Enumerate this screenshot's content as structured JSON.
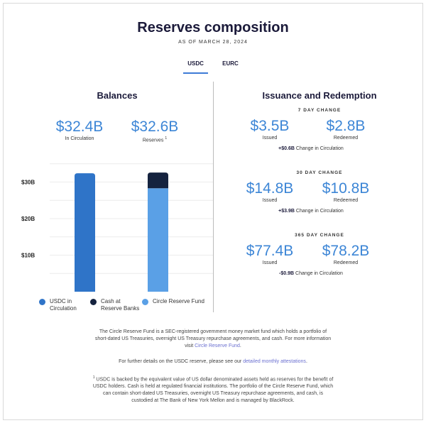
{
  "header": {
    "title": "Reserves composition",
    "as_of": "AS OF MARCH 28, 2024"
  },
  "tabs": [
    {
      "label": "USDC",
      "active": true
    },
    {
      "label": "EURC",
      "active": false
    }
  ],
  "balances": {
    "title": "Balances",
    "circulation": {
      "value": "$32.4B",
      "label": "In Circulation"
    },
    "reserves": {
      "value": "$32.6B",
      "label": "Reserves",
      "footnote": "1"
    }
  },
  "issuance": {
    "title": "Issuance and Redemption",
    "periods": [
      {
        "label": "7 DAY CHANGE",
        "issued": "$3.5B",
        "redeemed": "$2.8B",
        "issued_label": "Issued",
        "redeemed_label": "Redeemed",
        "net": "+$0.6B",
        "net_label": "Change in Circulation"
      },
      {
        "label": "30 DAY CHANGE",
        "issued": "$14.8B",
        "redeemed": "$10.8B",
        "issued_label": "Issued",
        "redeemed_label": "Redeemed",
        "net": "+$3.9B",
        "net_label": "Change in Circulation"
      },
      {
        "label": "365 DAY CHANGE",
        "issued": "$77.4B",
        "redeemed": "$78.2B",
        "issued_label": "Issued",
        "redeemed_label": "Redeemed",
        "net": "-$0.9B",
        "net_label": "Change in Circulation"
      }
    ]
  },
  "chart_data": {
    "type": "bar",
    "stacked": true,
    "categories": [
      "In Circulation",
      "Reserves"
    ],
    "series": [
      {
        "name": "USDC in Circulation",
        "values": [
          32.4,
          0
        ],
        "color": "#2f74c8"
      },
      {
        "name": "Cash at Reserve Banks",
        "values": [
          0,
          4.3
        ],
        "color": "#15233f"
      },
      {
        "name": "Circle Reserve Fund",
        "values": [
          0,
          28.3
        ],
        "color": "#5aa0e6"
      }
    ],
    "yticks": [
      "$10B",
      "$20B",
      "$30B"
    ],
    "ytick_values": [
      10,
      20,
      30
    ],
    "ylim": [
      0,
      35
    ],
    "grid": true,
    "legend": "bottom"
  },
  "footer": {
    "p1": "The Circle Reserve Fund is a SEC-registered government money market fund which holds a portfolio of short-dated US Treasuries, overnight US Treasury repurchase agreements, and cash. For more information visit ",
    "p1_link": "Circle Reserve Fund",
    "p1_end": ".",
    "p2": "For further details on the USDC reserve, please see our ",
    "p2_link": "detailed monthly attestations",
    "p2_end": ".",
    "p3_mark": "1",
    "p3": " USDC is backed by the equivalent value of US dollar denominated assets held as reserves for the benefit of USDC holders. Cash is held at regulated financial institutions. The portfolio of the Circle Reserve Fund, which can contain short-dated US Treasuries, overnight US Treasury repurchase agreements, and cash, is custodied at The Bank of New York Mellon and is managed by BlackRock."
  }
}
